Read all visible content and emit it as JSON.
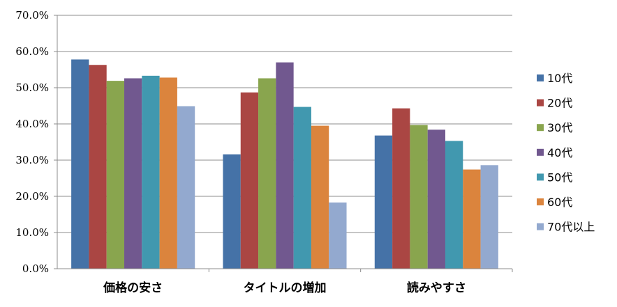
{
  "chart_data": {
    "type": "bar",
    "title": "",
    "xlabel": "",
    "ylabel": "",
    "categories": [
      "価格の安さ",
      "タイトルの増加",
      "読みやすさ"
    ],
    "series": [
      {
        "name": "10代",
        "color": "#4572a7",
        "values": [
          57.8,
          31.6,
          36.8
        ]
      },
      {
        "name": "20代",
        "color": "#aa4643",
        "values": [
          56.3,
          48.7,
          44.3
        ]
      },
      {
        "name": "30代",
        "color": "#89a54e",
        "values": [
          51.9,
          52.6,
          39.7
        ]
      },
      {
        "name": "40代",
        "color": "#71588f",
        "values": [
          52.6,
          57.0,
          38.4
        ]
      },
      {
        "name": "50代",
        "color": "#4198af",
        "values": [
          53.3,
          44.7,
          35.3
        ]
      },
      {
        "name": "60代",
        "color": "#db843d",
        "values": [
          52.8,
          39.5,
          27.4
        ]
      },
      {
        "name": "70代以上",
        "color": "#93a9cf",
        "values": [
          44.9,
          18.3,
          28.6
        ]
      }
    ],
    "yticks": [
      "0.0%",
      "10.0%",
      "20.0%",
      "30.0%",
      "40.0%",
      "50.0%",
      "60.0%",
      "70.0%"
    ],
    "ylim": [
      0,
      70
    ],
    "grid": true,
    "legend_position": "right"
  }
}
